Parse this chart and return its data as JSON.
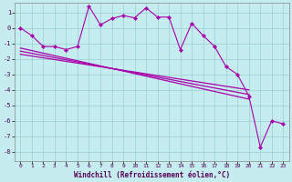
{
  "xlabel": "Windchill (Refroidissement éolien,°C)",
  "background_color": "#c5ecee",
  "grid_color": "#a0d4d8",
  "line_color": "#aa00aa",
  "xlim": [
    -0.5,
    23.5
  ],
  "ylim": [
    -8.6,
    1.6
  ],
  "yticks": [
    -8,
    -7,
    -6,
    -5,
    -4,
    -3,
    -2,
    -1,
    0,
    1
  ],
  "xticks": [
    0,
    1,
    2,
    3,
    4,
    5,
    6,
    7,
    8,
    9,
    10,
    11,
    12,
    13,
    14,
    15,
    16,
    17,
    18,
    19,
    20,
    21,
    22,
    23
  ],
  "data_x": [
    0,
    1,
    2,
    3,
    4,
    5,
    6,
    7,
    8,
    9,
    10,
    11,
    12,
    13,
    14,
    15,
    16,
    17,
    18,
    19,
    20,
    21,
    22,
    23
  ],
  "data_y": [
    0.0,
    -0.5,
    -1.2,
    -1.2,
    -1.4,
    -1.2,
    1.4,
    0.2,
    0.6,
    0.8,
    0.65,
    1.3,
    0.7,
    0.7,
    -1.4,
    0.3,
    -0.5,
    -1.2,
    -2.5,
    -3.0,
    -4.4,
    -7.7,
    -6.0,
    -6.2
  ],
  "trend1_x": [
    0,
    20
  ],
  "trend1_y": [
    -1.3,
    -4.6
  ],
  "trend2_x": [
    0,
    20
  ],
  "trend2_y": [
    -1.5,
    -4.3
  ],
  "trend3_x": [
    0,
    20
  ],
  "trend3_y": [
    -1.7,
    -4.0
  ]
}
